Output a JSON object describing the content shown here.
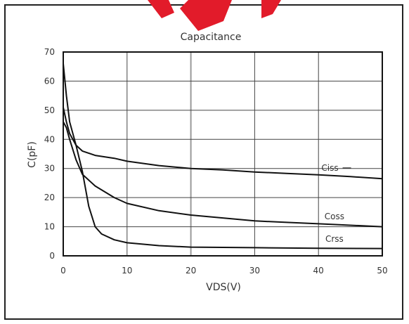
{
  "chart_data": {
    "type": "line",
    "title": "Capacitance",
    "xlabel": "VDS(V)",
    "ylabel": "C(pF)",
    "xlim": [
      0,
      50
    ],
    "ylim": [
      0,
      70
    ],
    "x_ticks": [
      0,
      10,
      20,
      30,
      40,
      50
    ],
    "y_ticks": [
      0,
      10,
      20,
      30,
      40,
      50,
      60,
      70
    ],
    "grid": true,
    "series": [
      {
        "name": "Ciss",
        "x": [
          0,
          0.5,
          1,
          2,
          3,
          5,
          8,
          10,
          15,
          20,
          25,
          30,
          35,
          40,
          45,
          50
        ],
        "y": [
          51,
          46,
          42,
          38,
          36,
          34.5,
          33.5,
          32.5,
          31,
          30,
          29.5,
          28.8,
          28.3,
          27.8,
          27.2,
          26.5
        ]
      },
      {
        "name": "Coss",
        "x": [
          0,
          0.5,
          1,
          2,
          3,
          5,
          8,
          10,
          15,
          20,
          25,
          30,
          35,
          40,
          45,
          50
        ],
        "y": [
          46,
          44,
          40,
          33,
          28,
          24,
          20,
          18,
          15.5,
          14,
          13,
          12,
          11.5,
          11,
          10.5,
          10
        ]
      },
      {
        "name": "Crss",
        "x": [
          0,
          0.5,
          1,
          2,
          3,
          4,
          5,
          6,
          8,
          10,
          15,
          20,
          30,
          40,
          50
        ],
        "y": [
          66,
          55,
          46,
          38,
          29,
          17,
          10,
          7.5,
          5.5,
          4.5,
          3.5,
          3,
          2.8,
          2.6,
          2.5
        ]
      }
    ]
  },
  "watermark_color": "#e21b2a"
}
